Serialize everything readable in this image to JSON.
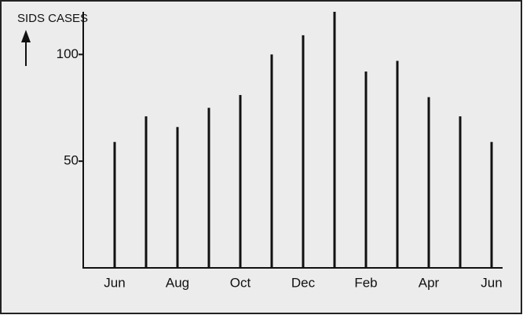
{
  "chart_data": {
    "type": "bar",
    "ylabel": "SIDS CASES",
    "categories": [
      "Jun",
      null,
      "Aug",
      null,
      "Oct",
      null,
      "Dec",
      null,
      "Feb",
      null,
      "Apr",
      null,
      "Jun"
    ],
    "values": [
      59,
      71,
      66,
      75,
      81,
      100,
      109,
      120,
      92,
      97,
      80,
      71,
      59
    ],
    "color": "#111111",
    "ylim": [
      0,
      120
    ],
    "yticks": [
      50,
      100
    ],
    "grid": false
  }
}
